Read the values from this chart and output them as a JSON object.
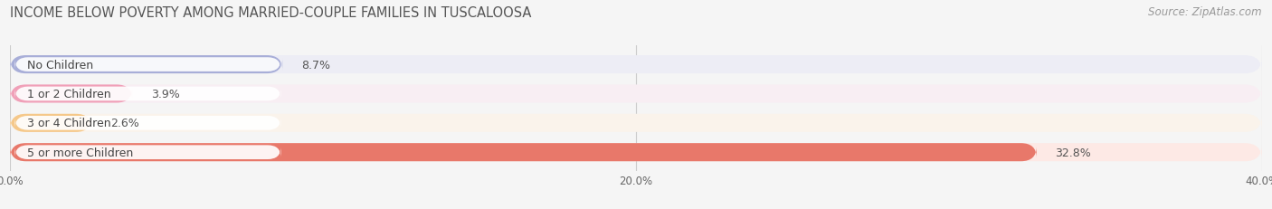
{
  "title": "INCOME BELOW POVERTY AMONG MARRIED-COUPLE FAMILIES IN TUSCALOOSA",
  "source": "Source: ZipAtlas.com",
  "categories": [
    "No Children",
    "1 or 2 Children",
    "3 or 4 Children",
    "5 or more Children"
  ],
  "values": [
    8.7,
    3.9,
    2.6,
    32.8
  ],
  "bar_colors": [
    "#a8aed8",
    "#f0a0b8",
    "#f5c88a",
    "#e8786a"
  ],
  "bg_colors": [
    "#ededf5",
    "#f8eef3",
    "#faf3eb",
    "#fde9e5"
  ],
  "xlim": [
    0,
    40
  ],
  "xticks": [
    0.0,
    20.0,
    40.0
  ],
  "xtick_labels": [
    "0.0%",
    "20.0%",
    "40.0%"
  ],
  "title_fontsize": 10.5,
  "source_fontsize": 8.5,
  "label_fontsize": 9,
  "value_fontsize": 9,
  "bar_height": 0.62,
  "background_color": "#f5f5f5"
}
